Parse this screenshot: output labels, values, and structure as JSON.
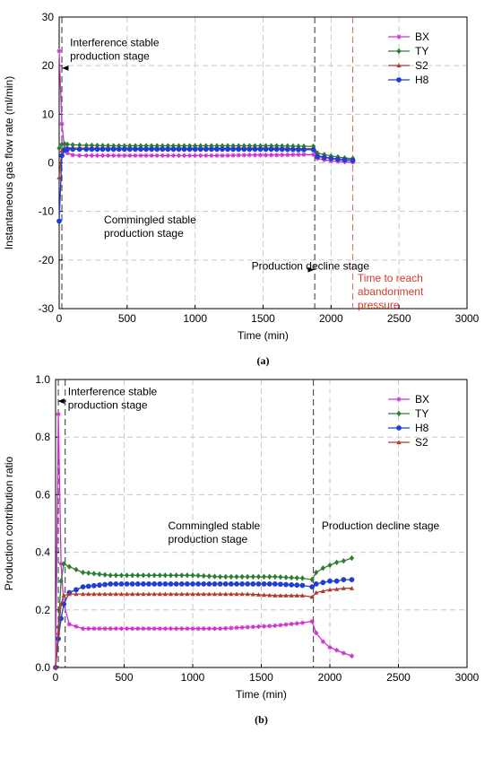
{
  "chart_data": [
    {
      "type": "line",
      "caption": "(a)",
      "xlabel": "Time (min)",
      "ylabel": "Instantaneous gas flow rate (ml/min)",
      "xlim": [
        0,
        3000
      ],
      "ylim": [
        -30,
        30
      ],
      "xticks": [
        0,
        500,
        1000,
        1500,
        2000,
        2500,
        3000
      ],
      "yticks": [
        -30,
        -20,
        -10,
        0,
        10,
        20,
        30
      ],
      "grid": true,
      "legend_position": "top-right",
      "series": [
        {
          "name": "BX",
          "color": "#cc33cc",
          "marker": "star",
          "x": [
            0,
            20,
            40,
            60,
            100,
            150,
            200,
            400,
            600,
            800,
            1000,
            1200,
            1400,
            1600,
            1800,
            1870,
            1900,
            1950,
            2000,
            2050,
            2100,
            2160
          ],
          "y": [
            23,
            8,
            3,
            2,
            1.6,
            1.5,
            1.5,
            1.5,
            1.5,
            1.5,
            1.5,
            1.5,
            1.6,
            1.6,
            1.7,
            1.7,
            0.9,
            0.6,
            0.4,
            0.3,
            0.2,
            0.1
          ]
        },
        {
          "name": "TY",
          "color": "#2e7d32",
          "marker": "diamond",
          "x": [
            0,
            20,
            40,
            60,
            100,
            200,
            400,
            600,
            800,
            1000,
            1200,
            1400,
            1600,
            1800,
            1870,
            1900,
            1950,
            2000,
            2050,
            2100,
            2160
          ],
          "y": [
            3,
            3.8,
            3.9,
            3.8,
            3.7,
            3.6,
            3.5,
            3.5,
            3.5,
            3.5,
            3.5,
            3.5,
            3.5,
            3.4,
            3.4,
            2.0,
            1.7,
            1.4,
            1.2,
            1.0,
            0.9
          ]
        },
        {
          "name": "S2",
          "color": "#b03a2e",
          "marker": "triangle",
          "x": [
            0,
            20,
            40,
            60,
            100,
            200,
            400,
            600,
            800,
            1000,
            1200,
            1400,
            1600,
            1800,
            1870,
            1900,
            1950,
            2000,
            2050,
            2100,
            2160
          ],
          "y": [
            -3,
            2.5,
            3.0,
            3.1,
            3.0,
            3.0,
            3.0,
            3.0,
            3.0,
            3.0,
            3.0,
            3.0,
            3.0,
            2.9,
            2.9,
            1.5,
            1.2,
            1.0,
            0.8,
            0.7,
            0.6
          ]
        },
        {
          "name": "H8",
          "color": "#1f3fd1",
          "marker": "circle",
          "x": [
            0,
            20,
            40,
            60,
            100,
            200,
            400,
            600,
            800,
            1000,
            1200,
            1400,
            1600,
            1800,
            1870,
            1900,
            1950,
            2000,
            2050,
            2100,
            2160
          ],
          "y": [
            -12,
            1.5,
            2.6,
            2.8,
            2.8,
            2.8,
            2.8,
            2.8,
            2.8,
            2.8,
            2.8,
            2.8,
            2.8,
            2.7,
            2.7,
            1.3,
            1.1,
            0.9,
            0.7,
            0.6,
            0.5
          ]
        }
      ],
      "vlines": [
        {
          "x": 20,
          "color": "#333333"
        },
        {
          "x": 1880,
          "color": "#333333"
        },
        {
          "x": 2160,
          "color": "#e06050"
        }
      ],
      "annotations": [
        {
          "lines": [
            "Interference stable",
            "production stage"
          ],
          "color": "#000000",
          "x": 80,
          "y": 24,
          "arrow_to": [
            22,
            19.5
          ],
          "arrow_from": [
            70,
            19.5
          ]
        },
        {
          "lines": [
            "Commingled stable",
            "production stage"
          ],
          "color": "#000000",
          "x": 330,
          "y": -12.5
        },
        {
          "lines": [
            "Production decline stage"
          ],
          "color": "#000000",
          "x": 1415,
          "y": -22,
          "arrow_to": [
            1875,
            -22
          ],
          "arrow_from": [
            1845,
            -22
          ]
        },
        {
          "lines": [
            "Time to reach",
            "abandonment",
            "pressure"
          ],
          "color": "#d63a2a",
          "x": 2195,
          "y": -24.5
        }
      ]
    },
    {
      "type": "line",
      "caption": "(b)",
      "xlabel": "Time (min)",
      "ylabel": "Production contribution ratio",
      "xlim": [
        0,
        3000
      ],
      "ylim": [
        0,
        1
      ],
      "xticks": [
        0,
        500,
        1000,
        1500,
        2000,
        2500,
        3000
      ],
      "yticks": [
        0.0,
        0.2,
        0.4,
        0.6,
        0.8,
        1.0
      ],
      "ytick_labels": [
        "0.0",
        "0.2",
        "0.4",
        "0.6",
        "0.8",
        "1.0"
      ],
      "grid": true,
      "legend_position": "top-right",
      "series": [
        {
          "name": "BX",
          "color": "#cc33cc",
          "marker": "star",
          "x": [
            0,
            20,
            40,
            60,
            100,
            200,
            400,
            600,
            800,
            1000,
            1200,
            1400,
            1600,
            1800,
            1870,
            1900,
            1950,
            2000,
            2050,
            2100,
            2160
          ],
          "y": [
            0.0,
            0.88,
            0.36,
            0.22,
            0.15,
            0.135,
            0.135,
            0.135,
            0.135,
            0.135,
            0.135,
            0.14,
            0.145,
            0.155,
            0.16,
            0.12,
            0.09,
            0.07,
            0.06,
            0.05,
            0.04
          ]
        },
        {
          "name": "TY",
          "color": "#2e7d32",
          "marker": "diamond",
          "x": [
            0,
            20,
            40,
            60,
            100,
            200,
            400,
            600,
            800,
            1000,
            1200,
            1400,
            1600,
            1800,
            1870,
            1900,
            1950,
            2000,
            2050,
            2100,
            2160
          ],
          "y": [
            0.0,
            0.14,
            0.3,
            0.36,
            0.35,
            0.33,
            0.32,
            0.32,
            0.32,
            0.32,
            0.315,
            0.315,
            0.315,
            0.31,
            0.305,
            0.33,
            0.345,
            0.355,
            0.365,
            0.37,
            0.38
          ]
        },
        {
          "name": "H8",
          "color": "#1f3fd1",
          "marker": "circle",
          "x": [
            0,
            20,
            40,
            60,
            100,
            200,
            400,
            600,
            800,
            1000,
            1200,
            1400,
            1600,
            1800,
            1870,
            1900,
            1950,
            2000,
            2050,
            2100,
            2160
          ],
          "y": [
            0.0,
            0.1,
            0.17,
            0.22,
            0.26,
            0.28,
            0.29,
            0.29,
            0.29,
            0.29,
            0.29,
            0.29,
            0.29,
            0.285,
            0.28,
            0.29,
            0.295,
            0.3,
            0.3,
            0.305,
            0.305
          ]
        },
        {
          "name": "S2",
          "color": "#b03a2e",
          "marker": "triangle",
          "x": [
            0,
            20,
            40,
            60,
            100,
            200,
            400,
            600,
            800,
            1000,
            1200,
            1400,
            1600,
            1800,
            1870,
            1900,
            1950,
            2000,
            2050,
            2100,
            2160
          ],
          "y": [
            0.0,
            0.12,
            0.22,
            0.25,
            0.255,
            0.255,
            0.255,
            0.255,
            0.255,
            0.255,
            0.255,
            0.255,
            0.25,
            0.25,
            0.245,
            0.26,
            0.265,
            0.27,
            0.272,
            0.275,
            0.275
          ]
        }
      ],
      "vlines": [
        {
          "x": 20,
          "color": "#333333"
        },
        {
          "x": 70,
          "color": "#333333"
        },
        {
          "x": 1880,
          "color": "#333333"
        }
      ],
      "annotations": [
        {
          "lines": [
            "Interference stable",
            "production stage"
          ],
          "color": "#000000",
          "x": 90,
          "y": 0.945,
          "arrow_to": [
            18,
            0.925
          ],
          "arrow_from": [
            78,
            0.925
          ]
        },
        {
          "lines": [
            "Commingled stable",
            "production stage"
          ],
          "color": "#000000",
          "x": 820,
          "y": 0.48
        },
        {
          "lines": [
            "Production decline stage"
          ],
          "color": "#000000",
          "x": 1940,
          "y": 0.48
        }
      ]
    }
  ]
}
